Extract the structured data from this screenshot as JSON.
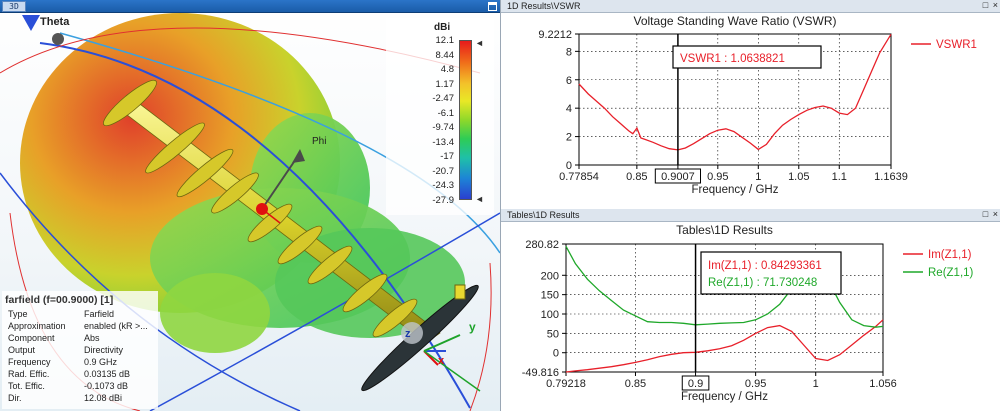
{
  "view3d": {
    "tab_label": "3D",
    "axis_theta": "Theta",
    "axis_phi": "Phi",
    "axis_x": "x",
    "axis_y": "y",
    "axis_z": "z",
    "colorbar": {
      "unit": "dBi",
      "ticks": [
        "12.1",
        "8.44",
        "4.8",
        "1.17",
        "-2.47",
        "-6.1",
        "-9.74",
        "-13.4",
        "-17",
        "-20.7",
        "-24.3",
        "-27.9"
      ],
      "colors": [
        "#e81b1b",
        "#f0701a",
        "#f3c22a",
        "#e9e826",
        "#8fd82a",
        "#2ecc56",
        "#1fc0a8",
        "#1d84d6",
        "#2a3fd0"
      ]
    },
    "info": {
      "title": "farfield (f=00.9000) [1]",
      "rows": [
        {
          "key": "Type",
          "value": "Farfield"
        },
        {
          "key": "Approximation",
          "value": "enabled (kR >..."
        },
        {
          "key": "Component",
          "value": "Abs"
        },
        {
          "key": "Output",
          "value": "Directivity"
        },
        {
          "key": "Frequency",
          "value": "0.9 GHz"
        },
        {
          "key": "Rad. Effic.",
          "value": "0.03135 dB"
        },
        {
          "key": "Tot. Effic.",
          "value": "-0.1073 dB"
        },
        {
          "key": "Dir.",
          "value": "12.08 dBi"
        }
      ]
    }
  },
  "panels": [
    {
      "bar_title": "1D Results\\VSWR",
      "buttons": "□ ×"
    },
    {
      "bar_title": "Tables\\1D Results",
      "buttons": "□ ×"
    }
  ],
  "chart_data": [
    {
      "type": "line",
      "title": "Voltage Standing Wave Ratio (VSWR)",
      "xlabel": "Frequency / GHz",
      "ylabel": "",
      "xlim": [
        0.77854,
        1.1639
      ],
      "ylim": [
        0,
        9.2212
      ],
      "xticks": [
        "0.77854",
        "0.85",
        "0.9007",
        "0.95",
        "1",
        "1.05",
        "1.1",
        "1.1639"
      ],
      "yticks": [
        "0",
        "2",
        "4",
        "6",
        "8",
        "9.2212"
      ],
      "grid": true,
      "legend_position": "right",
      "marker_x": 0.9007,
      "marker_x_label": "0.9007",
      "annotation": "VSWR1 : 1.0638821",
      "series": [
        {
          "name": "VSWR1",
          "color": "#e8202a",
          "x": [
            0.77854,
            0.79,
            0.8,
            0.81,
            0.82,
            0.83,
            0.84,
            0.845,
            0.85,
            0.855,
            0.86,
            0.87,
            0.88,
            0.89,
            0.9007,
            0.91,
            0.92,
            0.93,
            0.94,
            0.95,
            0.96,
            0.97,
            0.98,
            0.99,
            1.0,
            1.01,
            1.02,
            1.03,
            1.04,
            1.05,
            1.06,
            1.07,
            1.08,
            1.09,
            1.1,
            1.11,
            1.12,
            1.13,
            1.14,
            1.15,
            1.1639
          ],
          "y": [
            5.7,
            5.0,
            4.5,
            4.0,
            3.4,
            2.9,
            2.4,
            2.2,
            2.6,
            1.9,
            1.8,
            1.6,
            1.35,
            1.15,
            1.06,
            1.2,
            1.5,
            1.85,
            2.2,
            2.45,
            2.55,
            2.35,
            1.95,
            1.55,
            1.1,
            1.45,
            2.2,
            2.8,
            3.2,
            3.55,
            3.85,
            4.05,
            4.15,
            4.0,
            3.65,
            3.55,
            4.0,
            5.3,
            6.6,
            7.9,
            9.2
          ]
        }
      ]
    },
    {
      "type": "line",
      "title": "Tables\\1D Results",
      "xlabel": "Frequency / GHz",
      "ylabel": "",
      "xlim": [
        0.79218,
        1.056
      ],
      "ylim": [
        -49.816,
        280.82
      ],
      "xticks": [
        "0.79218",
        "0.85",
        "0.9",
        "0.95",
        "1",
        "1.056"
      ],
      "yticks": [
        "-49.816",
        "0",
        "50",
        "100",
        "150",
        "200",
        "280.82"
      ],
      "grid": true,
      "legend_position": "right",
      "marker_x": 0.9,
      "marker_x_label": "0.9",
      "annotation_lines": [
        "Im(Z1,1) : 0.84293361",
        "Re(Z1,1) : 71.730248"
      ],
      "series": [
        {
          "name": "Im(Z1,1)",
          "color": "#e8202a",
          "x": [
            0.79218,
            0.8,
            0.81,
            0.82,
            0.83,
            0.84,
            0.85,
            0.86,
            0.87,
            0.88,
            0.89,
            0.9,
            0.91,
            0.92,
            0.93,
            0.94,
            0.95,
            0.96,
            0.97,
            0.98,
            0.99,
            1.0,
            1.01,
            1.02,
            1.03,
            1.04,
            1.05,
            1.056
          ],
          "y": [
            -49.8,
            -47,
            -44,
            -40,
            -36,
            -31,
            -25,
            -18,
            -10,
            -4,
            0,
            1,
            5,
            10,
            18,
            32,
            50,
            65,
            70,
            55,
            20,
            -15,
            -20,
            -5,
            20,
            45,
            68,
            85
          ]
        },
        {
          "name": "Re(Z1,1)",
          "color": "#1fa82a",
          "x": [
            0.79218,
            0.8,
            0.81,
            0.82,
            0.83,
            0.84,
            0.85,
            0.86,
            0.87,
            0.88,
            0.89,
            0.9,
            0.91,
            0.92,
            0.93,
            0.94,
            0.95,
            0.96,
            0.97,
            0.98,
            0.99,
            1.0,
            1.01,
            1.02,
            1.03,
            1.04,
            1.05,
            1.056
          ],
          "y": [
            275,
            230,
            190,
            160,
            135,
            110,
            95,
            80,
            78,
            78,
            76,
            72,
            74,
            76,
            77,
            78,
            85,
            100,
            125,
            165,
            225,
            240,
            190,
            130,
            85,
            70,
            66,
            68
          ]
        }
      ]
    }
  ]
}
